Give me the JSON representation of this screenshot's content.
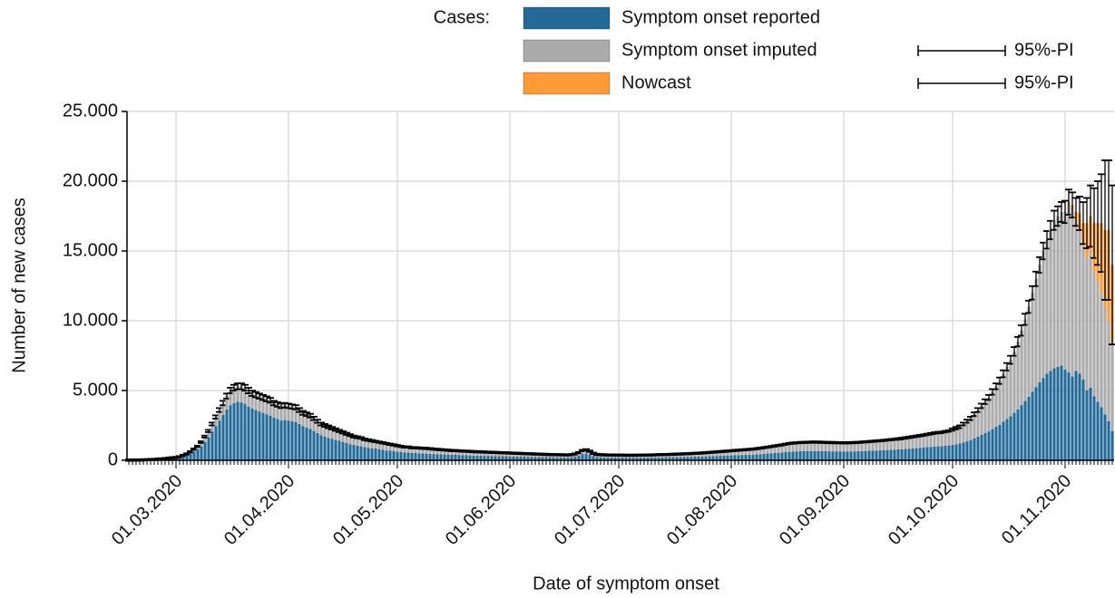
{
  "chart_data": {
    "type": "stacked-bar",
    "legend_title": "Cases:",
    "xlabel": "Date of symptom onset",
    "ylabel": "Number of new cases",
    "ylim": [
      0,
      25000
    ],
    "yticks": [
      0,
      {
        "value": 5000,
        "label": "5.000"
      },
      {
        "value": 10000,
        "label": "10.000"
      },
      {
        "value": 15000,
        "label": "15.000"
      },
      {
        "value": 20000,
        "label": "20.000"
      },
      {
        "value": 25000,
        "label": "25.000"
      }
    ],
    "grid": true,
    "categories": [
      null,
      null,
      null,
      null,
      null,
      null,
      null,
      null,
      null,
      null,
      null,
      null,
      null,
      "01.03.2020",
      null,
      null,
      null,
      null,
      null,
      null,
      null,
      null,
      null,
      null,
      null,
      null,
      null,
      null,
      null,
      null,
      null,
      null,
      null,
      null,
      null,
      null,
      null,
      null,
      null,
      null,
      null,
      null,
      null,
      null,
      "01.04.2020",
      null,
      null,
      null,
      null,
      null,
      null,
      null,
      null,
      null,
      null,
      null,
      null,
      null,
      null,
      null,
      null,
      null,
      null,
      null,
      null,
      null,
      null,
      null,
      null,
      null,
      null,
      null,
      null,
      null,
      "01.05.2020",
      null,
      null,
      null,
      null,
      null,
      null,
      null,
      null,
      null,
      null,
      null,
      null,
      null,
      null,
      null,
      null,
      null,
      null,
      null,
      null,
      null,
      null,
      null,
      null,
      null,
      null,
      null,
      null,
      null,
      null,
      "01.06.2020",
      null,
      null,
      null,
      null,
      null,
      null,
      null,
      null,
      null,
      null,
      null,
      null,
      null,
      null,
      null,
      null,
      null,
      null,
      null,
      null,
      null,
      null,
      null,
      null,
      null,
      null,
      null,
      null,
      null,
      "01.07.2020",
      null,
      null,
      null,
      null,
      null,
      null,
      null,
      null,
      null,
      null,
      null,
      null,
      null,
      null,
      null,
      null,
      null,
      null,
      null,
      null,
      null,
      null,
      null,
      null,
      null,
      null,
      null,
      null,
      null,
      null,
      "01.08.2020",
      null,
      null,
      null,
      null,
      null,
      null,
      null,
      null,
      null,
      null,
      null,
      null,
      null,
      null,
      null,
      null,
      null,
      null,
      null,
      null,
      null,
      null,
      null,
      null,
      null,
      null,
      null,
      null,
      null,
      null,
      "01.09.2020",
      null,
      null,
      null,
      null,
      null,
      null,
      null,
      null,
      null,
      null,
      null,
      null,
      null,
      null,
      null,
      null,
      null,
      null,
      null,
      null,
      null,
      null,
      null,
      null,
      null,
      null,
      null,
      null,
      null,
      "01.10.2020",
      null,
      null,
      null,
      null,
      null,
      null,
      null,
      null,
      null,
      null,
      null,
      null,
      null,
      null,
      null,
      null,
      null,
      null,
      null,
      null,
      null,
      null,
      null,
      null,
      null,
      null,
      null,
      null,
      null,
      null,
      "01.11.2020",
      null,
      null,
      null,
      null,
      null,
      null,
      null,
      null,
      null,
      null,
      null,
      null,
      null
    ],
    "series": [
      {
        "name": "Symptom onset reported",
        "color": "#236a98",
        "values": [
          5,
          5,
          10,
          10,
          20,
          30,
          30,
          40,
          60,
          70,
          90,
          110,
          130,
          150,
          190,
          270,
          350,
          470,
          620,
          780,
          1000,
          1300,
          1650,
          2050,
          2450,
          2850,
          3250,
          3650,
          3950,
          4100,
          4200,
          4150,
          4050,
          3850,
          3700,
          3600,
          3500,
          3400,
          3300,
          3200,
          3050,
          2950,
          2850,
          2900,
          2850,
          2800,
          2750,
          2600,
          2450,
          2350,
          2250,
          2100,
          1950,
          1800,
          1700,
          1600,
          1550,
          1450,
          1400,
          1300,
          1250,
          1150,
          1100,
          1050,
          1000,
          950,
          900,
          850,
          850,
          800,
          750,
          700,
          700,
          650,
          620,
          600,
          570,
          560,
          530,
          520,
          500,
          490,
          480,
          470,
          450,
          440,
          430,
          420,
          410,
          400,
          390,
          380,
          370,
          360,
          350,
          340,
          330,
          330,
          320,
          320,
          310,
          300,
          300,
          290,
          290,
          280,
          270,
          270,
          260,
          260,
          250,
          250,
          240,
          240,
          230,
          230,
          220,
          220,
          210,
          210,
          210,
          200,
          220,
          260,
          330,
          450,
          480,
          400,
          300,
          240,
          220,
          210,
          200,
          200,
          200,
          200,
          200,
          190,
          190,
          190,
          190,
          200,
          200,
          200,
          200,
          210,
          210,
          210,
          220,
          220,
          230,
          230,
          240,
          240,
          250,
          250,
          260,
          270,
          270,
          280,
          290,
          300,
          310,
          320,
          330,
          340,
          350,
          360,
          370,
          380,
          390,
          400,
          410,
          420,
          440,
          460,
          480,
          500,
          520,
          540,
          560,
          590,
          610,
          630,
          640,
          650,
          650,
          660,
          660,
          660,
          660,
          650,
          650,
          640,
          640,
          640,
          640,
          630,
          630,
          640,
          640,
          650,
          660,
          670,
          680,
          690,
          700,
          710,
          720,
          740,
          750,
          760,
          780,
          790,
          810,
          830,
          850,
          870,
          890,
          910,
          940,
          960,
          990,
          1000,
          1010,
          1040,
          1060,
          1100,
          1150,
          1200,
          1280,
          1360,
          1450,
          1580,
          1700,
          1830,
          1950,
          2070,
          2230,
          2400,
          2550,
          2760,
          2950,
          3150,
          3400,
          3650,
          3950,
          4250,
          4550,
          4900,
          5250,
          5600,
          5900,
          6200,
          6400,
          6600,
          6700,
          6800,
          6500,
          6300,
          6000,
          6400,
          6200,
          5800,
          5000,
          5200,
          4600,
          4200,
          3800,
          3300,
          2800,
          2100
        ]
      },
      {
        "name": "Symptom onset imputed",
        "color": "#ababab",
        "pi_label": "95%-PI",
        "values": [
          5,
          5,
          10,
          10,
          10,
          10,
          20,
          20,
          20,
          30,
          30,
          40,
          50,
          50,
          60,
          80,
          100,
          130,
          180,
          220,
          300,
          400,
          450,
          550,
          650,
          750,
          850,
          950,
          1050,
          1100,
          1100,
          1150,
          1150,
          1150,
          1100,
          1100,
          1100,
          1100,
          1100,
          1100,
          1050,
          1050,
          1050,
          1050,
          1050,
          1050,
          1050,
          1000,
          950,
          950,
          950,
          900,
          850,
          800,
          800,
          800,
          750,
          750,
          700,
          700,
          650,
          650,
          600,
          600,
          600,
          550,
          550,
          550,
          500,
          500,
          500,
          500,
          450,
          450,
          430,
          400,
          380,
          390,
          370,
          380,
          380,
          370,
          370,
          360,
          350,
          340,
          330,
          320,
          310,
          300,
          300,
          300,
          290,
          290,
          290,
          280,
          280,
          270,
          270,
          260,
          260,
          260,
          250,
          250,
          240,
          240,
          240,
          230,
          230,
          220,
          220,
          210,
          210,
          200,
          200,
          190,
          190,
          180,
          190,
          180,
          180,
          180,
          180,
          190,
          220,
          250,
          270,
          250,
          200,
          180,
          180,
          180,
          180,
          180,
          170,
          170,
          170,
          170,
          170,
          170,
          170,
          170,
          170,
          180,
          180,
          180,
          190,
          190,
          190,
          200,
          200,
          210,
          210,
          220,
          220,
          230,
          240,
          240,
          250,
          260,
          270,
          280,
          290,
          300,
          310,
          320,
          330,
          340,
          350,
          360,
          370,
          380,
          390,
          410,
          420,
          440,
          460,
          480,
          500,
          520,
          540,
          560,
          590,
          600,
          610,
          620,
          630,
          630,
          640,
          640,
          640,
          640,
          630,
          630,
          630,
          620,
          620,
          620,
          620,
          620,
          630,
          630,
          640,
          650,
          660,
          670,
          680,
          690,
          700,
          710,
          730,
          740,
          750,
          770,
          790,
          810,
          830,
          850,
          870,
          890,
          910,
          940,
          960,
          980,
          990,
          1010,
          1040,
          1100,
          1150,
          1200,
          1320,
          1440,
          1550,
          1720,
          1900,
          2070,
          2250,
          2430,
          2670,
          2900,
          3150,
          3440,
          3750,
          4050,
          4400,
          4850,
          5350,
          5850,
          6450,
          7100,
          7750,
          8400,
          9100,
          9600,
          10100,
          10600,
          10800,
          11000,
          11300,
          12200,
          12000,
          10900,
          10300,
          9700,
          9500,
          9800,
          8900,
          8600,
          8200,
          7700,
          7200,
          6400
        ]
      },
      {
        "name": "Nowcast",
        "color": "#ff9a36",
        "pi_label": "95%-PI",
        "values": [
          null,
          null,
          null,
          null,
          null,
          null,
          null,
          null,
          null,
          null,
          null,
          null,
          null,
          null,
          null,
          null,
          null,
          null,
          null,
          null,
          null,
          null,
          null,
          null,
          null,
          null,
          null,
          null,
          null,
          null,
          null,
          null,
          null,
          null,
          null,
          null,
          null,
          null,
          null,
          null,
          null,
          null,
          null,
          null,
          null,
          null,
          null,
          null,
          null,
          null,
          null,
          null,
          null,
          null,
          null,
          null,
          null,
          null,
          null,
          null,
          null,
          null,
          null,
          null,
          null,
          null,
          null,
          null,
          null,
          null,
          null,
          null,
          null,
          null,
          null,
          null,
          null,
          null,
          null,
          null,
          null,
          null,
          null,
          null,
          null,
          null,
          null,
          null,
          null,
          null,
          null,
          null,
          null,
          null,
          null,
          null,
          null,
          null,
          null,
          null,
          null,
          null,
          null,
          null,
          null,
          null,
          null,
          null,
          null,
          null,
          null,
          null,
          null,
          null,
          null,
          null,
          null,
          null,
          null,
          null,
          null,
          null,
          null,
          null,
          null,
          null,
          null,
          null,
          null,
          null,
          null,
          null,
          null,
          null,
          null,
          null,
          null,
          null,
          null,
          null,
          null,
          null,
          null,
          null,
          null,
          null,
          null,
          null,
          null,
          null,
          null,
          null,
          null,
          null,
          null,
          null,
          null,
          null,
          null,
          null,
          null,
          null,
          null,
          null,
          null,
          null,
          null,
          null,
          null,
          null,
          null,
          null,
          null,
          null,
          null,
          null,
          null,
          null,
          null,
          null,
          null,
          null,
          null,
          null,
          null,
          null,
          null,
          null,
          null,
          null,
          null,
          null,
          null,
          null,
          null,
          null,
          null,
          null,
          null,
          null,
          null,
          null,
          null,
          null,
          null,
          null,
          null,
          null,
          null,
          null,
          null,
          null,
          null,
          null,
          null,
          null,
          null,
          null,
          null,
          null,
          null,
          null,
          null,
          null,
          null,
          null,
          null,
          null,
          null,
          null,
          null,
          null,
          null,
          null,
          null,
          null,
          null,
          null,
          null,
          null,
          null,
          null,
          null,
          null,
          null,
          null,
          null,
          null,
          null,
          null,
          null,
          null,
          null,
          null,
          null,
          null,
          null,
          null,
          null,
          null,
          300,
          500,
          1200,
          1500,
          2500,
          2500,
          3500,
          4200,
          5000,
          5500,
          6500,
          5500
        ]
      }
    ],
    "errors": [
      50,
      50,
      50,
      50,
      50,
      50,
      50,
      50,
      50,
      50,
      50,
      50,
      50,
      50,
      50,
      50,
      50,
      50,
      50,
      50,
      60,
      70,
      80,
      100,
      120,
      140,
      160,
      180,
      200,
      210,
      210,
      210,
      210,
      200,
      190,
      190,
      180,
      180,
      180,
      170,
      160,
      160,
      160,
      160,
      160,
      150,
      150,
      140,
      140,
      130,
      130,
      120,
      110,
      100,
      100,
      100,
      90,
      90,
      80,
      80,
      80,
      70,
      70,
      70,
      60,
      60,
      60,
      60,
      50,
      50,
      50,
      50,
      50,
      50,
      50,
      50,
      50,
      50,
      50,
      50,
      50,
      50,
      50,
      50,
      50,
      50,
      50,
      50,
      50,
      50,
      50,
      50,
      50,
      50,
      50,
      50,
      50,
      50,
      50,
      50,
      50,
      50,
      50,
      50,
      50,
      50,
      50,
      50,
      50,
      50,
      50,
      50,
      50,
      50,
      50,
      50,
      50,
      50,
      50,
      50,
      50,
      50,
      50,
      50,
      50,
      50,
      50,
      50,
      50,
      50,
      50,
      50,
      50,
      50,
      50,
      50,
      50,
      50,
      50,
      50,
      50,
      50,
      50,
      50,
      50,
      50,
      50,
      50,
      50,
      50,
      50,
      50,
      50,
      50,
      50,
      50,
      50,
      50,
      50,
      50,
      50,
      50,
      50,
      50,
      50,
      50,
      50,
      50,
      50,
      50,
      50,
      50,
      50,
      50,
      50,
      50,
      50,
      50,
      50,
      50,
      50,
      50,
      50,
      50,
      50,
      50,
      50,
      50,
      50,
      50,
      50,
      50,
      50,
      50,
      50,
      50,
      50,
      50,
      50,
      50,
      50,
      50,
      50,
      50,
      50,
      50,
      50,
      50,
      50,
      50,
      50,
      50,
      60,
      60,
      60,
      60,
      60,
      60,
      60,
      60,
      60,
      60,
      60,
      60,
      60,
      60,
      60,
      90,
      90,
      100,
      100,
      110,
      120,
      130,
      140,
      160,
      170,
      180,
      200,
      210,
      230,
      250,
      270,
      290,
      310,
      340,
      370,
      400,
      440,
      480,
      520,
      560,
      600,
      630,
      660,
      690,
      700,
      710,
      800,
      900,
      900,
      1000,
      1200,
      1500,
      1800,
      2200,
      2500,
      3000,
      3500,
      5000,
      5000,
      5700
    ]
  }
}
